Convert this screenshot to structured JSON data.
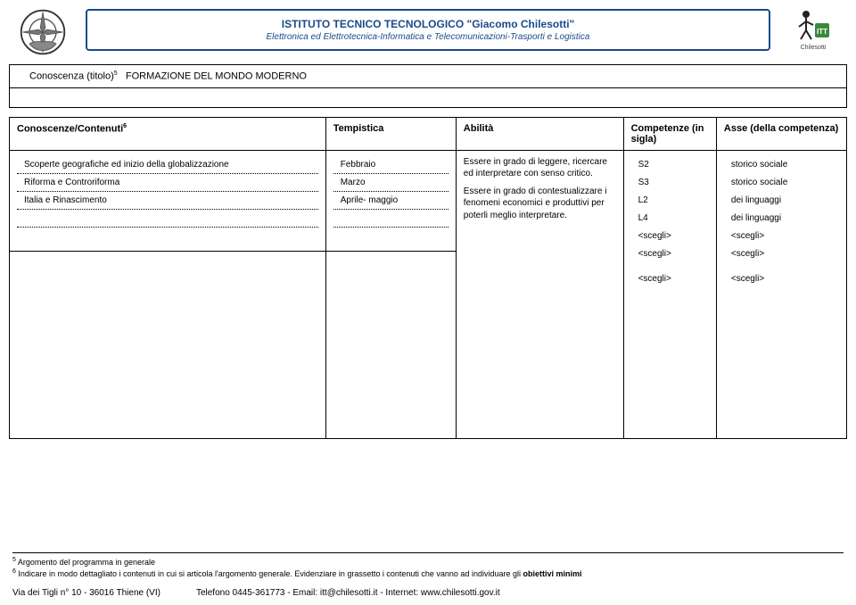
{
  "header": {
    "title_main": "ISTITUTO TECNICO TECNOLOGICO \"Giacomo Chilesotti\"",
    "title_sub": "Elettronica ed Elettrotecnica-Informatica e Telecomunicazioni-Trasporti e Logistica",
    "right_logo_text": "Chilesotti"
  },
  "section_title": {
    "label": "Conoscenza (titolo)",
    "sup": "5",
    "value": "FORMAZIONE DEL MONDO MODERNO"
  },
  "table_headers": {
    "cc": "Conoscenze/Contenuti",
    "cc_sup": "6",
    "temp": "Tempistica",
    "abil": "Abilità",
    "comp": "Competenze (in sigla)",
    "asse": "Asse (della competenza)"
  },
  "rows_cc": [
    "Scoperte geografiche ed inizio della globalizzazione",
    "Riforma e Controriforma",
    "Italia e Rinascimento",
    "",
    ""
  ],
  "rows_temp": [
    "Febbraio",
    "Marzo",
    "Aprile- maggio",
    "",
    ""
  ],
  "ability_text": "Essere in grado di leggere, ricercare ed interpretare con senso critico.\nEssere in grado di contestualizzare i fenomeni economici e produttivi per poterli meglio interpretare.",
  "comp_values": [
    "S2",
    "S3",
    "L2",
    "L4",
    "<scegli>",
    "<scegli>",
    "<scegli>"
  ],
  "asse_values": [
    "storico sociale",
    "storico sociale",
    "dei linguaggi",
    "dei linguaggi",
    "<scegli>",
    "<scegli>",
    "<scegli>"
  ],
  "footnotes": {
    "f5": "Argomento del programma in generale",
    "f6_a": "Indicare in modo dettagliato i contenuti in cui si articola l'argomento generale. Evidenziare in grassetto i contenuti che vanno ad individuare gli ",
    "f6_b": "obiettivi minimi"
  },
  "footer": {
    "left": "Via dei Tigli n° 10 - 36016 Thiene (VI)",
    "rest": "Telefono 0445-361773 - Email: itt@chilesotti.it - Internet: www.chilesotti.gov.it"
  },
  "colors": {
    "title_border": "#1a4a8a",
    "text": "#000000",
    "background": "#ffffff"
  }
}
